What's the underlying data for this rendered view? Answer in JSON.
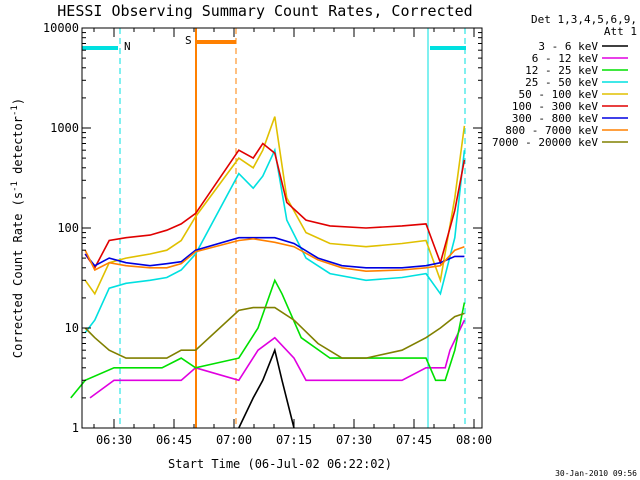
{
  "chart_data": {
    "type": "line",
    "title": "HESSI Observing Summary Count Rates, Corrected",
    "xlabel": "Start Time (06-Jul-02 06:22:02)",
    "ylabel_main": "Corrected Count Rate (s",
    "ylabel_sup1": "-1",
    "ylabel_mid": " detector",
    "ylabel_sup2": "-1",
    "ylabel_end": ")",
    "yscale": "log",
    "ylim": [
      1,
      10000
    ],
    "x_ticks": [
      "06:30",
      "06:45",
      "07:00",
      "07:15",
      "07:30",
      "07:45",
      "08:00"
    ],
    "y_ticks": [
      "1",
      "10",
      "100",
      "1000",
      "10000"
    ],
    "legend_header": [
      "Det 1,3,4,5,6,9,",
      "Att 1"
    ],
    "footer": "30-Jan-2010 09:56",
    "flags": {
      "night": "N",
      "saa": "S"
    },
    "series": [
      {
        "name": "3 - 6 keV",
        "color": "#000000",
        "points": [
          [
            7.02,
            1
          ],
          [
            7.08,
            2
          ],
          [
            7.12,
            3
          ],
          [
            7.17,
            6
          ],
          [
            7.2,
            3
          ],
          [
            7.25,
            1
          ]
        ]
      },
      {
        "name": "6 - 12 keV",
        "color": "#e000e0",
        "points": [
          [
            6.4,
            2
          ],
          [
            6.5,
            3
          ],
          [
            6.6,
            3
          ],
          [
            6.7,
            3
          ],
          [
            6.78,
            3
          ],
          [
            6.84,
            4
          ],
          [
            7.02,
            3
          ],
          [
            7.1,
            6
          ],
          [
            7.17,
            8
          ],
          [
            7.25,
            5
          ],
          [
            7.3,
            3
          ],
          [
            7.5,
            3
          ],
          [
            7.7,
            3
          ],
          [
            7.8,
            4
          ],
          [
            7.88,
            4
          ],
          [
            7.9,
            6
          ],
          [
            7.96,
            12
          ]
        ]
      },
      {
        "name": "12 - 25 keV",
        "color": "#00e000",
        "points": [
          [
            6.32,
            2
          ],
          [
            6.38,
            3
          ],
          [
            6.5,
            4
          ],
          [
            6.7,
            4
          ],
          [
            6.78,
            5
          ],
          [
            6.84,
            4
          ],
          [
            7.02,
            5
          ],
          [
            7.1,
            10
          ],
          [
            7.17,
            30
          ],
          [
            7.2,
            22
          ],
          [
            7.28,
            8
          ],
          [
            7.4,
            5
          ],
          [
            7.6,
            5
          ],
          [
            7.7,
            5
          ],
          [
            7.8,
            5
          ],
          [
            7.84,
            3
          ],
          [
            7.88,
            3
          ],
          [
            7.92,
            6
          ],
          [
            7.96,
            18
          ]
        ]
      },
      {
        "name": "25 - 50 keV",
        "color": "#00e0e0",
        "points": [
          [
            6.38,
            9
          ],
          [
            6.42,
            12
          ],
          [
            6.48,
            25
          ],
          [
            6.55,
            28
          ],
          [
            6.65,
            30
          ],
          [
            6.72,
            32
          ],
          [
            6.78,
            38
          ],
          [
            6.84,
            55
          ],
          [
            7.02,
            350
          ],
          [
            7.08,
            250
          ],
          [
            7.12,
            330
          ],
          [
            7.17,
            600
          ],
          [
            7.22,
            120
          ],
          [
            7.3,
            50
          ],
          [
            7.4,
            35
          ],
          [
            7.55,
            30
          ],
          [
            7.7,
            32
          ],
          [
            7.8,
            35
          ],
          [
            7.86,
            22
          ],
          [
            7.92,
            80
          ],
          [
            7.96,
            600
          ]
        ]
      },
      {
        "name": "50 - 100 keV",
        "color": "#e0c000",
        "points": [
          [
            6.38,
            30
          ],
          [
            6.42,
            22
          ],
          [
            6.48,
            45
          ],
          [
            6.55,
            50
          ],
          [
            6.65,
            55
          ],
          [
            6.72,
            60
          ],
          [
            6.78,
            75
          ],
          [
            6.84,
            130
          ],
          [
            7.02,
            500
          ],
          [
            7.08,
            400
          ],
          [
            7.12,
            600
          ],
          [
            7.17,
            1300
          ],
          [
            7.22,
            200
          ],
          [
            7.3,
            90
          ],
          [
            7.4,
            70
          ],
          [
            7.55,
            65
          ],
          [
            7.7,
            70
          ],
          [
            7.8,
            75
          ],
          [
            7.86,
            30
          ],
          [
            7.92,
            200
          ],
          [
            7.96,
            1050
          ]
        ]
      },
      {
        "name": "100 - 300 keV",
        "color": "#e00000",
        "points": [
          [
            6.38,
            55
          ],
          [
            6.42,
            40
          ],
          [
            6.48,
            75
          ],
          [
            6.55,
            80
          ],
          [
            6.65,
            85
          ],
          [
            6.72,
            95
          ],
          [
            6.78,
            110
          ],
          [
            6.84,
            140
          ],
          [
            7.02,
            600
          ],
          [
            7.08,
            500
          ],
          [
            7.12,
            700
          ],
          [
            7.17,
            560
          ],
          [
            7.22,
            180
          ],
          [
            7.3,
            120
          ],
          [
            7.4,
            105
          ],
          [
            7.55,
            100
          ],
          [
            7.7,
            105
          ],
          [
            7.8,
            110
          ],
          [
            7.86,
            45
          ],
          [
            7.92,
            150
          ],
          [
            7.96,
            480
          ]
        ]
      },
      {
        "name": "300 - 800 keV",
        "color": "#0000e0",
        "points": [
          [
            6.38,
            55
          ],
          [
            6.42,
            42
          ],
          [
            6.48,
            50
          ],
          [
            6.55,
            45
          ],
          [
            6.65,
            42
          ],
          [
            6.72,
            44
          ],
          [
            6.78,
            46
          ],
          [
            6.84,
            60
          ],
          [
            7.02,
            80
          ],
          [
            7.08,
            80
          ],
          [
            7.17,
            80
          ],
          [
            7.25,
            70
          ],
          [
            7.35,
            50
          ],
          [
            7.45,
            42
          ],
          [
            7.55,
            40
          ],
          [
            7.7,
            40
          ],
          [
            7.8,
            42
          ],
          [
            7.86,
            45
          ],
          [
            7.92,
            52
          ],
          [
            7.96,
            52
          ]
        ]
      },
      {
        "name": "800 - 7000 keV",
        "color": "#ff8000",
        "points": [
          [
            6.38,
            60
          ],
          [
            6.42,
            38
          ],
          [
            6.48,
            45
          ],
          [
            6.55,
            42
          ],
          [
            6.65,
            40
          ],
          [
            6.72,
            40
          ],
          [
            6.78,
            44
          ],
          [
            6.84,
            58
          ],
          [
            7.02,
            75
          ],
          [
            7.08,
            78
          ],
          [
            7.17,
            72
          ],
          [
            7.25,
            65
          ],
          [
            7.35,
            48
          ],
          [
            7.45,
            40
          ],
          [
            7.55,
            37
          ],
          [
            7.7,
            38
          ],
          [
            7.8,
            40
          ],
          [
            7.86,
            42
          ],
          [
            7.92,
            60
          ],
          [
            7.96,
            65
          ]
        ]
      },
      {
        "name": "7000 - 20000 keV",
        "color": "#808000",
        "points": [
          [
            6.38,
            10
          ],
          [
            6.42,
            8
          ],
          [
            6.48,
            6
          ],
          [
            6.55,
            5
          ],
          [
            6.65,
            5
          ],
          [
            6.72,
            5
          ],
          [
            6.78,
            6
          ],
          [
            6.84,
            6
          ],
          [
            7.02,
            15
          ],
          [
            7.08,
            16
          ],
          [
            7.17,
            16
          ],
          [
            7.25,
            12
          ],
          [
            7.35,
            7
          ],
          [
            7.45,
            5
          ],
          [
            7.55,
            5
          ],
          [
            7.7,
            6
          ],
          [
            7.8,
            8
          ],
          [
            7.86,
            10
          ],
          [
            7.92,
            13
          ],
          [
            7.96,
            14
          ]
        ]
      }
    ]
  }
}
